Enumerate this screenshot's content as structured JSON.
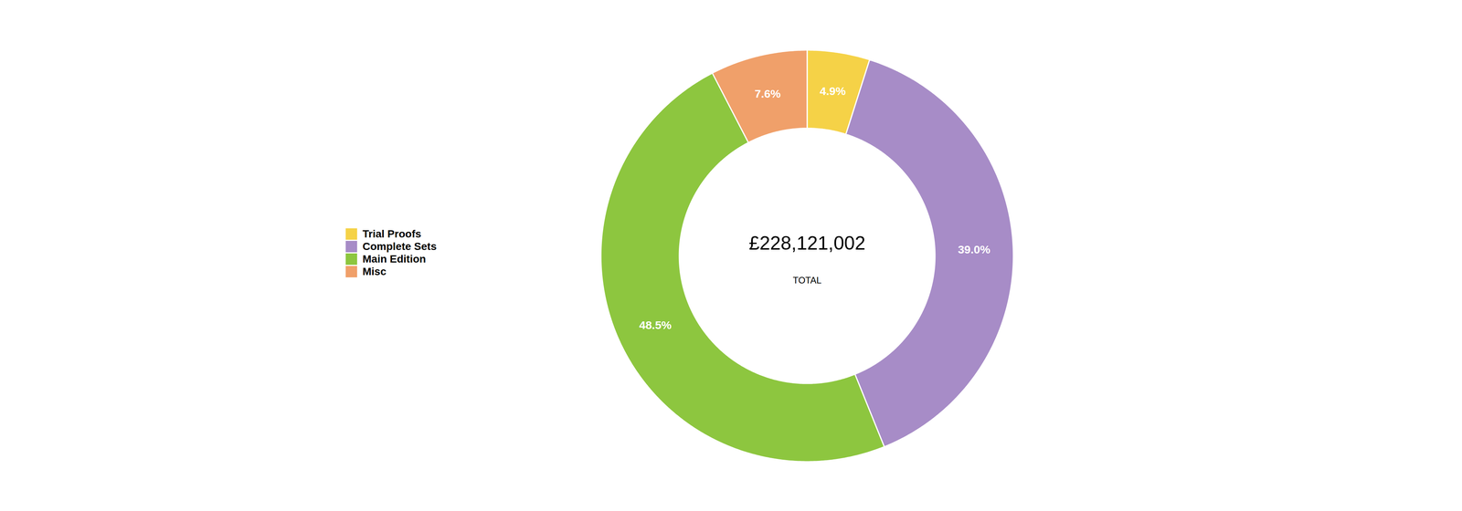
{
  "chart_data": {
    "type": "pie",
    "categories": [
      "Trial Proofs",
      "Complete Sets",
      "Main Edition",
      "Misc"
    ],
    "values": [
      4.9,
      39.0,
      48.5,
      7.6
    ],
    "value_labels": [
      "4.9%",
      "39.0%",
      "48.5%",
      "7.6%"
    ],
    "colors": [
      "#f5d247",
      "#a78cc7",
      "#8dc63f",
      "#f0a06a"
    ],
    "data_labels": true,
    "annotations": [
      "£228,121,002",
      "TOTAL"
    ],
    "legend": "left"
  }
}
